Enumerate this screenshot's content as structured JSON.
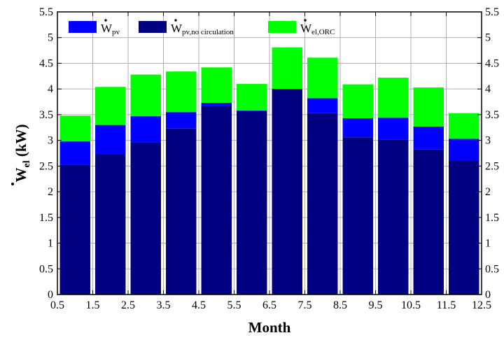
{
  "chart_data": {
    "type": "bar",
    "stacked": true,
    "x": [
      1,
      2,
      3,
      4,
      5,
      6,
      7,
      8,
      9,
      10,
      11,
      12
    ],
    "series": [
      {
        "name": "Ẇpv,no circulation",
        "color": "#000080",
        "values": [
          2.52,
          2.73,
          2.96,
          3.23,
          3.67,
          3.57,
          4.0,
          3.53,
          3.06,
          3.02,
          2.82,
          2.6
        ]
      },
      {
        "name": "Ẇpv",
        "color": "#0000ff",
        "values": [
          0.46,
          0.57,
          0.51,
          0.32,
          0.06,
          0.01,
          0.0,
          0.29,
          0.37,
          0.42,
          0.45,
          0.43
        ]
      },
      {
        "name": "Ẇel,ORC",
        "color": "#00ff00",
        "values": [
          0.5,
          0.74,
          0.81,
          0.79,
          0.69,
          0.52,
          0.81,
          0.79,
          0.66,
          0.78,
          0.76,
          0.5
        ]
      }
    ],
    "xlim": [
      0.5,
      12.5
    ],
    "ylim": [
      0,
      5.5
    ],
    "xticks": [
      "0.5",
      "1.5",
      "2.5",
      "3.5",
      "4.5",
      "5.5",
      "6.5",
      "7.5",
      "8.5",
      "9.5",
      "10.5",
      "11.5",
      "12.5"
    ],
    "yticks": [
      "0",
      "0.5",
      "1",
      "1.5",
      "2",
      "2.5",
      "3",
      "3.5",
      "4",
      "4.5",
      "5",
      "5.5"
    ],
    "xlabel": "Month",
    "ylabel": "Ẇel (kW)",
    "grid": true,
    "legend": {
      "position": "top",
      "order": [
        "Ẇpv",
        "Ẇpv,no circulation",
        "Ẇel,ORC"
      ],
      "entries": [
        {
          "base": "W",
          "sub": "pv",
          "color": "#0000ff"
        },
        {
          "base": "W",
          "sub": "pv,no circulation",
          "color": "#000080"
        },
        {
          "base": "W",
          "sub": "el,ORC",
          "color": "#00ff00"
        }
      ]
    }
  }
}
